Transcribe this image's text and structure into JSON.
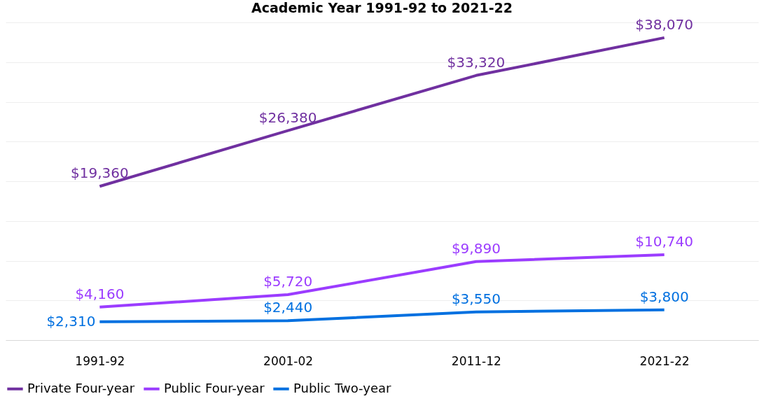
{
  "chart_data": {
    "type": "line",
    "title": "Academic Year 1991-92 to 2021-22",
    "categories": [
      "1991-92",
      "2001-02",
      "2011-12",
      "2021-22"
    ],
    "series": [
      {
        "name": "Private Four-year",
        "color": "#7030a0",
        "values": [
          19360,
          26380,
          33320,
          38070
        ],
        "value_labels": [
          "$19,360",
          "$26,380",
          "$33,320",
          "$38,070"
        ]
      },
      {
        "name": "Public Four-year",
        "color": "#9b3cff",
        "values": [
          4160,
          5720,
          9890,
          10740
        ],
        "value_labels": [
          "$4,160",
          "$5,720",
          "$9,890",
          "$10,740"
        ]
      },
      {
        "name": "Public Two-year",
        "color": "#0070e0",
        "values": [
          2310,
          2440,
          3550,
          3800
        ],
        "value_labels": [
          "$2,310",
          "$2,440",
          "$3,550",
          "$3,800"
        ]
      }
    ],
    "ylim": [
      0,
      40000
    ],
    "yticks": [
      {
        "value": 0,
        "label": null
      },
      {
        "value": 5000,
        "label": null
      },
      {
        "value": 10000,
        "label": null
      },
      {
        "value": 15000,
        "label": null
      },
      {
        "value": 20000,
        "label": null
      },
      {
        "value": 25000,
        "label": null
      },
      {
        "value": 30000,
        "label": null
      },
      {
        "value": 35000,
        "label": null
      },
      {
        "value": 40000,
        "label": null
      }
    ],
    "tick_labels": "x",
    "grid": "y",
    "legend": "bottom",
    "marker": "none",
    "line_style": "solid"
  }
}
